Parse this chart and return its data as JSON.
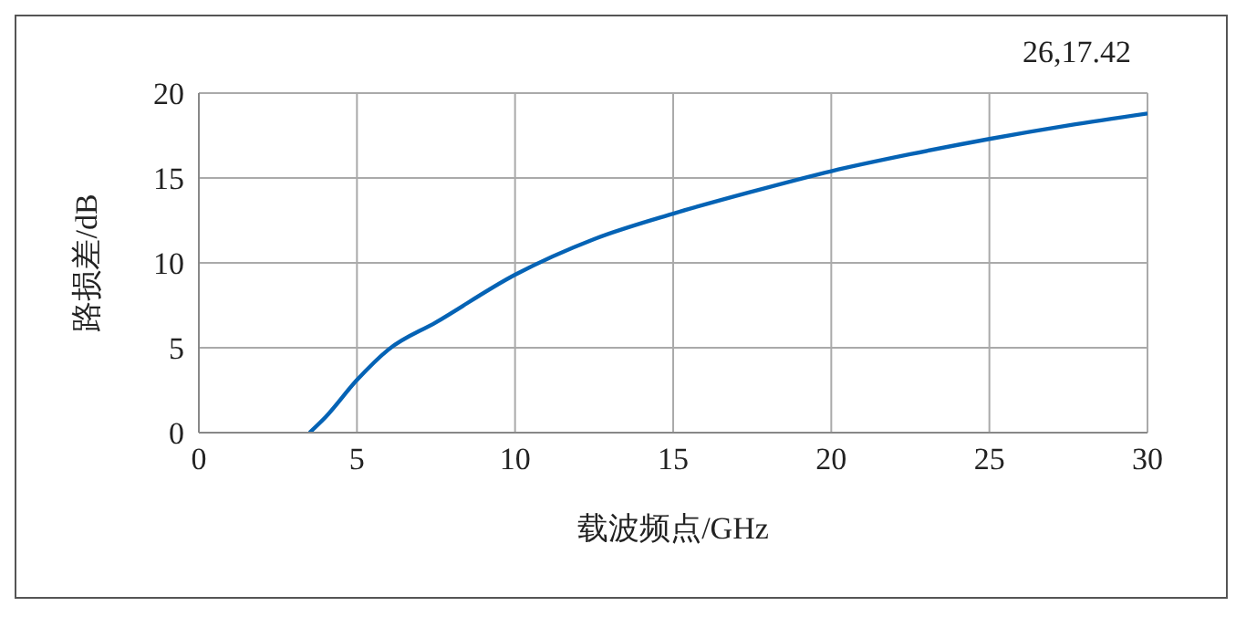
{
  "chart_data": {
    "type": "line",
    "xlabel": "载波频点/GHz",
    "ylabel": "路损差/dB",
    "annotations": [
      "26,17.42"
    ],
    "x": [
      3.5,
      4,
      5,
      6,
      7.5,
      10,
      12.5,
      15,
      17.5,
      20,
      22.5,
      25,
      27.5,
      30
    ],
    "series": [
      {
        "color": "#0563b5",
        "values": [
          0,
          0.9,
          3.1,
          4.9,
          6.5,
          9.3,
          11.4,
          12.9,
          14.2,
          15.4,
          16.4,
          17.3,
          18.1,
          18.8
        ]
      }
    ],
    "xlim": [
      0,
      30
    ],
    "xticks": [
      0,
      5,
      10,
      15,
      20,
      25,
      30
    ],
    "ylim": [
      0,
      20
    ],
    "yticks": [
      0,
      5,
      10,
      15,
      20
    ],
    "grid": true,
    "marker": "none",
    "line_style": "solid"
  }
}
